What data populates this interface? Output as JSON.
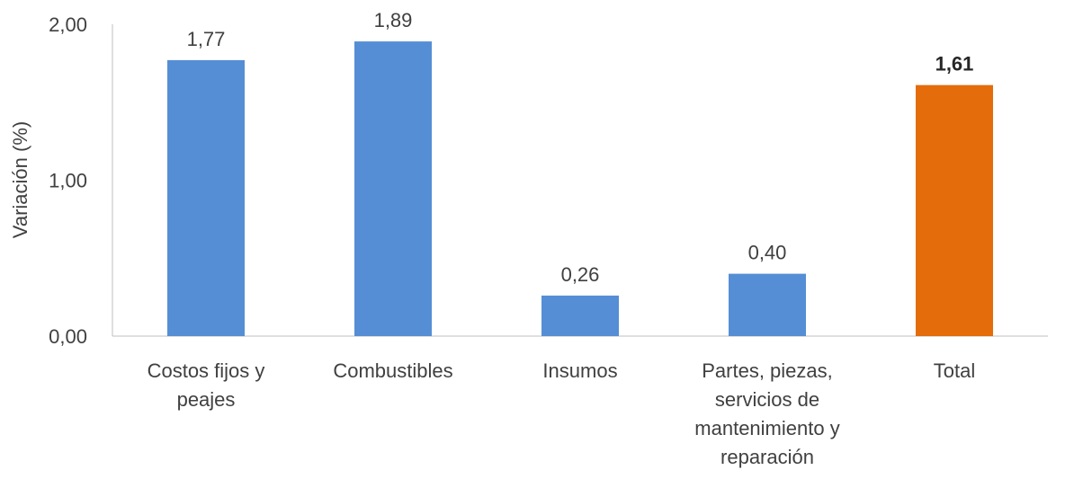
{
  "chart_data": {
    "type": "bar",
    "ylabel": "Variación (%)",
    "xlabel": "",
    "ylim": [
      0,
      2
    ],
    "y_ticks": [
      "0,00",
      "1,00",
      "2,00"
    ],
    "y_tick_values": [
      0,
      1,
      2
    ],
    "grid": false,
    "categories": [
      [
        "Costos fijos y",
        "peajes"
      ],
      [
        "Combustibles"
      ],
      [
        "Insumos"
      ],
      [
        "Partes, piezas,",
        "servicios de",
        "mantenimiento y",
        "reparación"
      ],
      [
        "Total"
      ]
    ],
    "values": [
      1.77,
      1.89,
      0.26,
      0.4,
      1.61
    ],
    "value_labels": [
      "1,77",
      "1,89",
      "0,26",
      "0,40",
      "1,61"
    ],
    "bar_colors": [
      "#558ED5",
      "#558ED5",
      "#558ED5",
      "#558ED5",
      "#E46C0A"
    ],
    "bold_labels": [
      false,
      false,
      false,
      false,
      true
    ],
    "axis_color": "#BFBFBF"
  }
}
